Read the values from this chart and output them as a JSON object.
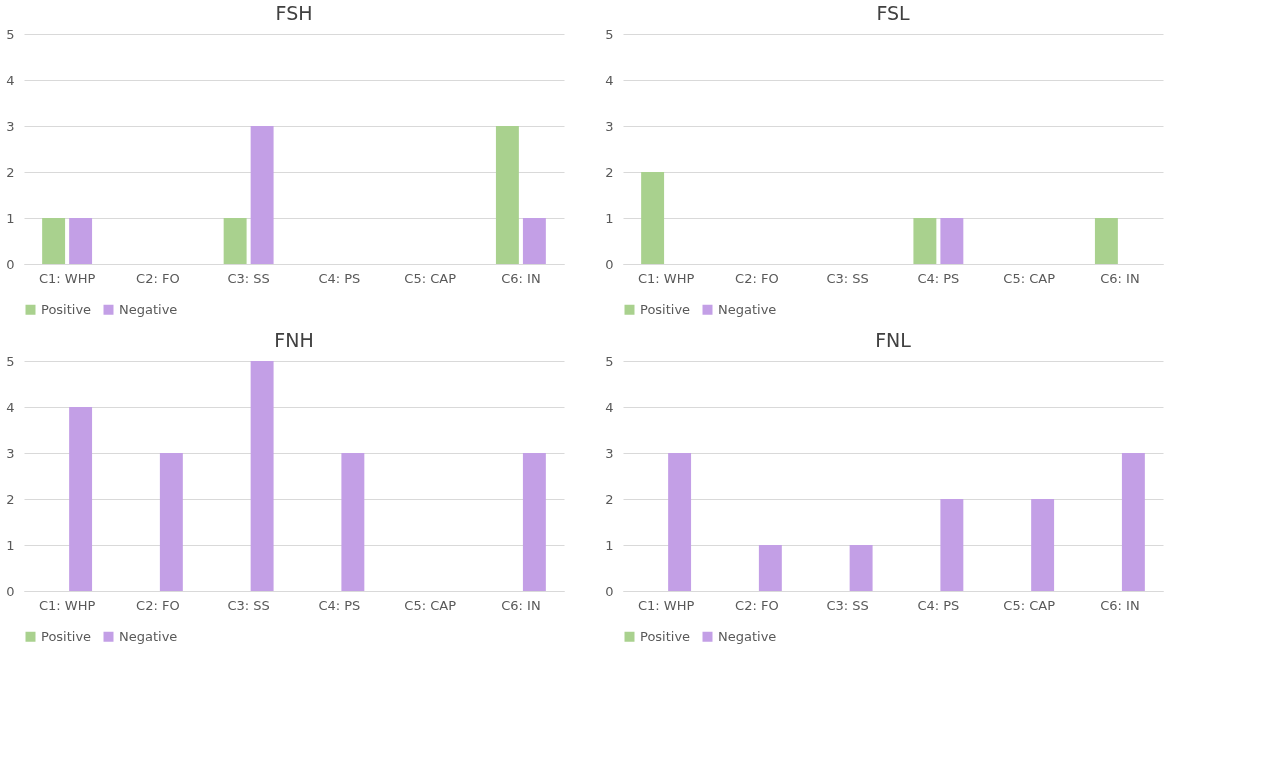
{
  "chart_data": [
    {
      "type": "bar",
      "title": "FSH",
      "categories": [
        "C1: WHP",
        "C2: FO",
        "C3: SS",
        "C4: PS",
        "C5: CAP",
        "C6: IN"
      ],
      "series": [
        {
          "name": "Positive",
          "color": "#a9d18e",
          "values": [
            1,
            0,
            1,
            0,
            0,
            3
          ]
        },
        {
          "name": "Negative",
          "color": "#c39fe6",
          "values": [
            1,
            0,
            3,
            0,
            0,
            1
          ]
        }
      ],
      "ylim": [
        0,
        5
      ],
      "yticks": [
        0,
        1,
        2,
        3,
        4,
        5
      ],
      "grid": "y",
      "legend": "bottom"
    },
    {
      "type": "bar",
      "title": "FSL",
      "categories": [
        "C1: WHP",
        "C2: FO",
        "C3: SS",
        "C4: PS",
        "C5: CAP",
        "C6: IN"
      ],
      "series": [
        {
          "name": "Positive",
          "color": "#a9d18e",
          "values": [
            2,
            0,
            0,
            1,
            0,
            1
          ]
        },
        {
          "name": "Negative",
          "color": "#c39fe6",
          "values": [
            0,
            0,
            0,
            1,
            0,
            0
          ]
        }
      ],
      "ylim": [
        0,
        5
      ],
      "yticks": [
        0,
        1,
        2,
        3,
        4,
        5
      ],
      "grid": "y",
      "legend": "bottom"
    },
    {
      "type": "bar",
      "title": "FNH",
      "categories": [
        "C1: WHP",
        "C2: FO",
        "C3: SS",
        "C4: PS",
        "C5: CAP",
        "C6: IN"
      ],
      "series": [
        {
          "name": "Positive",
          "color": "#a9d18e",
          "values": [
            0,
            0,
            0,
            0,
            0,
            0
          ]
        },
        {
          "name": "Negative",
          "color": "#c39fe6",
          "values": [
            4,
            3,
            5,
            3,
            0,
            3
          ]
        }
      ],
      "ylim": [
        0,
        5
      ],
      "yticks": [
        0,
        1,
        2,
        3,
        4,
        5
      ],
      "grid": "y",
      "legend": "bottom"
    },
    {
      "type": "bar",
      "title": "FNL",
      "categories": [
        "C1: WHP",
        "C2: FO",
        "C3: SS",
        "C4: PS",
        "C5: CAP",
        "C6: IN"
      ],
      "series": [
        {
          "name": "Positive",
          "color": "#a9d18e",
          "values": [
            0,
            0,
            0,
            0,
            0,
            0
          ]
        },
        {
          "name": "Negative",
          "color": "#c39fe6",
          "values": [
            3,
            1,
            1,
            2,
            2,
            3
          ]
        }
      ],
      "ylim": [
        0,
        5
      ],
      "yticks": [
        0,
        1,
        2,
        3,
        4,
        5
      ],
      "grid": "y",
      "legend": "bottom"
    }
  ]
}
